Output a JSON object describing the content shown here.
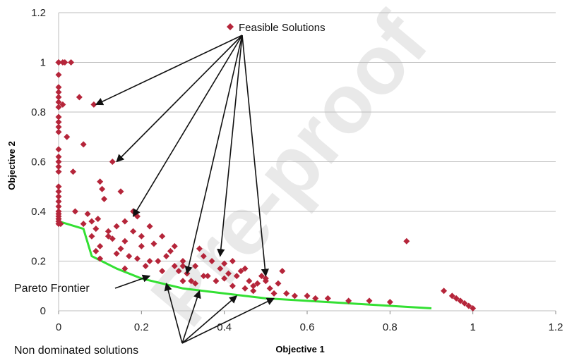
{
  "chart_data": {
    "type": "scatter",
    "title": "",
    "xlabel": "Objective 1",
    "ylabel": "Objective 2",
    "xlim": [
      0,
      1.2
    ],
    "ylim": [
      0,
      1.2
    ],
    "x_ticks": [
      "0",
      "0.2",
      "0.4",
      "0.6",
      "0.8",
      "1",
      "1.2"
    ],
    "y_ticks": [
      "0",
      "0.2",
      "0.4",
      "0.6",
      "0.8",
      "1",
      "1.2"
    ],
    "grid": "horizontal",
    "legend": {
      "label": "Feasible Solutions",
      "placement": "top-center"
    },
    "watermark": "Pre-proof",
    "colors": {
      "points": "#b5253a",
      "frontier": "#33e033",
      "grid": "#bdbdbd",
      "arrows": "#111111"
    },
    "annotations": {
      "pareto": "Pareto Frontier",
      "non_dominated": "Non dominated solutions"
    },
    "series": [
      {
        "kind": "points",
        "x": [
          0,
          0,
          0,
          0,
          0,
          0,
          0,
          0,
          0,
          0,
          0,
          0,
          0,
          0,
          0,
          0,
          0,
          0,
          0,
          0,
          0,
          0,
          0,
          0,
          0,
          0,
          0,
          0,
          0.005,
          0.01,
          0.01,
          0.015,
          0.02,
          0.03,
          0.035,
          0.04,
          0.05,
          0.06,
          0.07,
          0.08,
          0.085,
          0.09,
          0.095,
          0.1,
          0.1,
          0.105,
          0.11,
          0.12,
          0.13,
          0.14,
          0.15,
          0.15,
          0.16,
          0.16,
          0.17,
          0.18,
          0.18,
          0.19,
          0.2,
          0.2,
          0.21,
          0.22,
          0.23,
          0.24,
          0.25,
          0.26,
          0.27,
          0.28,
          0.29,
          0.3,
          0.3,
          0.31,
          0.32,
          0.33,
          0.34,
          0.35,
          0.36,
          0.37,
          0.38,
          0.39,
          0.4,
          0.41,
          0.42,
          0.43,
          0.44,
          0.45,
          0.46,
          0.47,
          0.48,
          0.49,
          0.5,
          0.51,
          0.52,
          0.53,
          0.54,
          0.55,
          0.57,
          0.6,
          0.62,
          0.65,
          0.7,
          0.75,
          0.8,
          0.84,
          0.93,
          0.95,
          0.96,
          0.97,
          0.98,
          0.99,
          1,
          0.12,
          0.08,
          0.3,
          0.35,
          0.28,
          0.22,
          0.42,
          0.47,
          0.1,
          0.14,
          0.06,
          0.09,
          0.25,
          0.33,
          0.4,
          0.45,
          0.5,
          0.16,
          0.19,
          0.13
        ],
        "y": [
          1,
          1,
          0.95,
          0.9,
          0.88,
          0.86,
          0.84,
          0.82,
          0.78,
          0.76,
          0.74,
          0.72,
          0.65,
          0.62,
          0.6,
          0.58,
          0.56,
          0.5,
          0.48,
          0.46,
          0.44,
          0.42,
          0.4,
          0.39,
          0.38,
          0.37,
          0.36,
          0.35,
          0.35,
          1,
          0.83,
          1,
          0.7,
          1,
          0.56,
          0.4,
          0.86,
          0.67,
          0.39,
          0.36,
          0.83,
          0.33,
          0.37,
          0.52,
          0.26,
          0.49,
          0.45,
          0.3,
          0.6,
          0.34,
          0.25,
          0.48,
          0.36,
          0.28,
          0.22,
          0.4,
          0.32,
          0.38,
          0.3,
          0.26,
          0.18,
          0.34,
          0.27,
          0.2,
          0.3,
          0.22,
          0.24,
          0.18,
          0.16,
          0.2,
          0.12,
          0.15,
          0.12,
          0.18,
          0.25,
          0.22,
          0.14,
          0.2,
          0.12,
          0.17,
          0.19,
          0.15,
          0.2,
          0.14,
          0.16,
          0.17,
          0.12,
          0.1,
          0.11,
          0.14,
          0.12,
          0.09,
          0.07,
          0.11,
          0.16,
          0.07,
          0.06,
          0.06,
          0.05,
          0.05,
          0.04,
          0.04,
          0.035,
          0.28,
          0.08,
          0.06,
          0.05,
          0.04,
          0.03,
          0.02,
          0.01,
          0.32,
          0.3,
          0.18,
          0.14,
          0.26,
          0.2,
          0.1,
          0.08,
          0.21,
          0.23,
          0.35,
          0.24,
          0.16,
          0.11,
          0.13,
          0.09,
          0.13,
          0.17,
          0.21,
          0.29
        ]
      },
      {
        "kind": "frontier",
        "x": [
          0,
          0.06,
          0.08,
          0.14,
          0.2,
          0.3,
          0.4,
          0.5,
          0.6,
          0.7,
          0.8,
          0.9
        ],
        "y": [
          0.36,
          0.33,
          0.22,
          0.17,
          0.13,
          0.09,
          0.07,
          0.05,
          0.04,
          0.03,
          0.02,
          0.01
        ]
      }
    ],
    "feasible_arrow_targets": [
      [
        0.09,
        0.83
      ],
      [
        0.14,
        0.6
      ],
      [
        0.18,
        0.38
      ],
      [
        0.31,
        0.15
      ],
      [
        0.39,
        0.22
      ],
      [
        0.5,
        0.14
      ]
    ],
    "nondominated_arrow_targets": [
      [
        0.26,
        0.11
      ],
      [
        0.34,
        0.08
      ],
      [
        0.43,
        0.06
      ],
      [
        0.52,
        0.05
      ]
    ],
    "pareto_arrow_target": [
      0.22,
      0.14
    ]
  }
}
